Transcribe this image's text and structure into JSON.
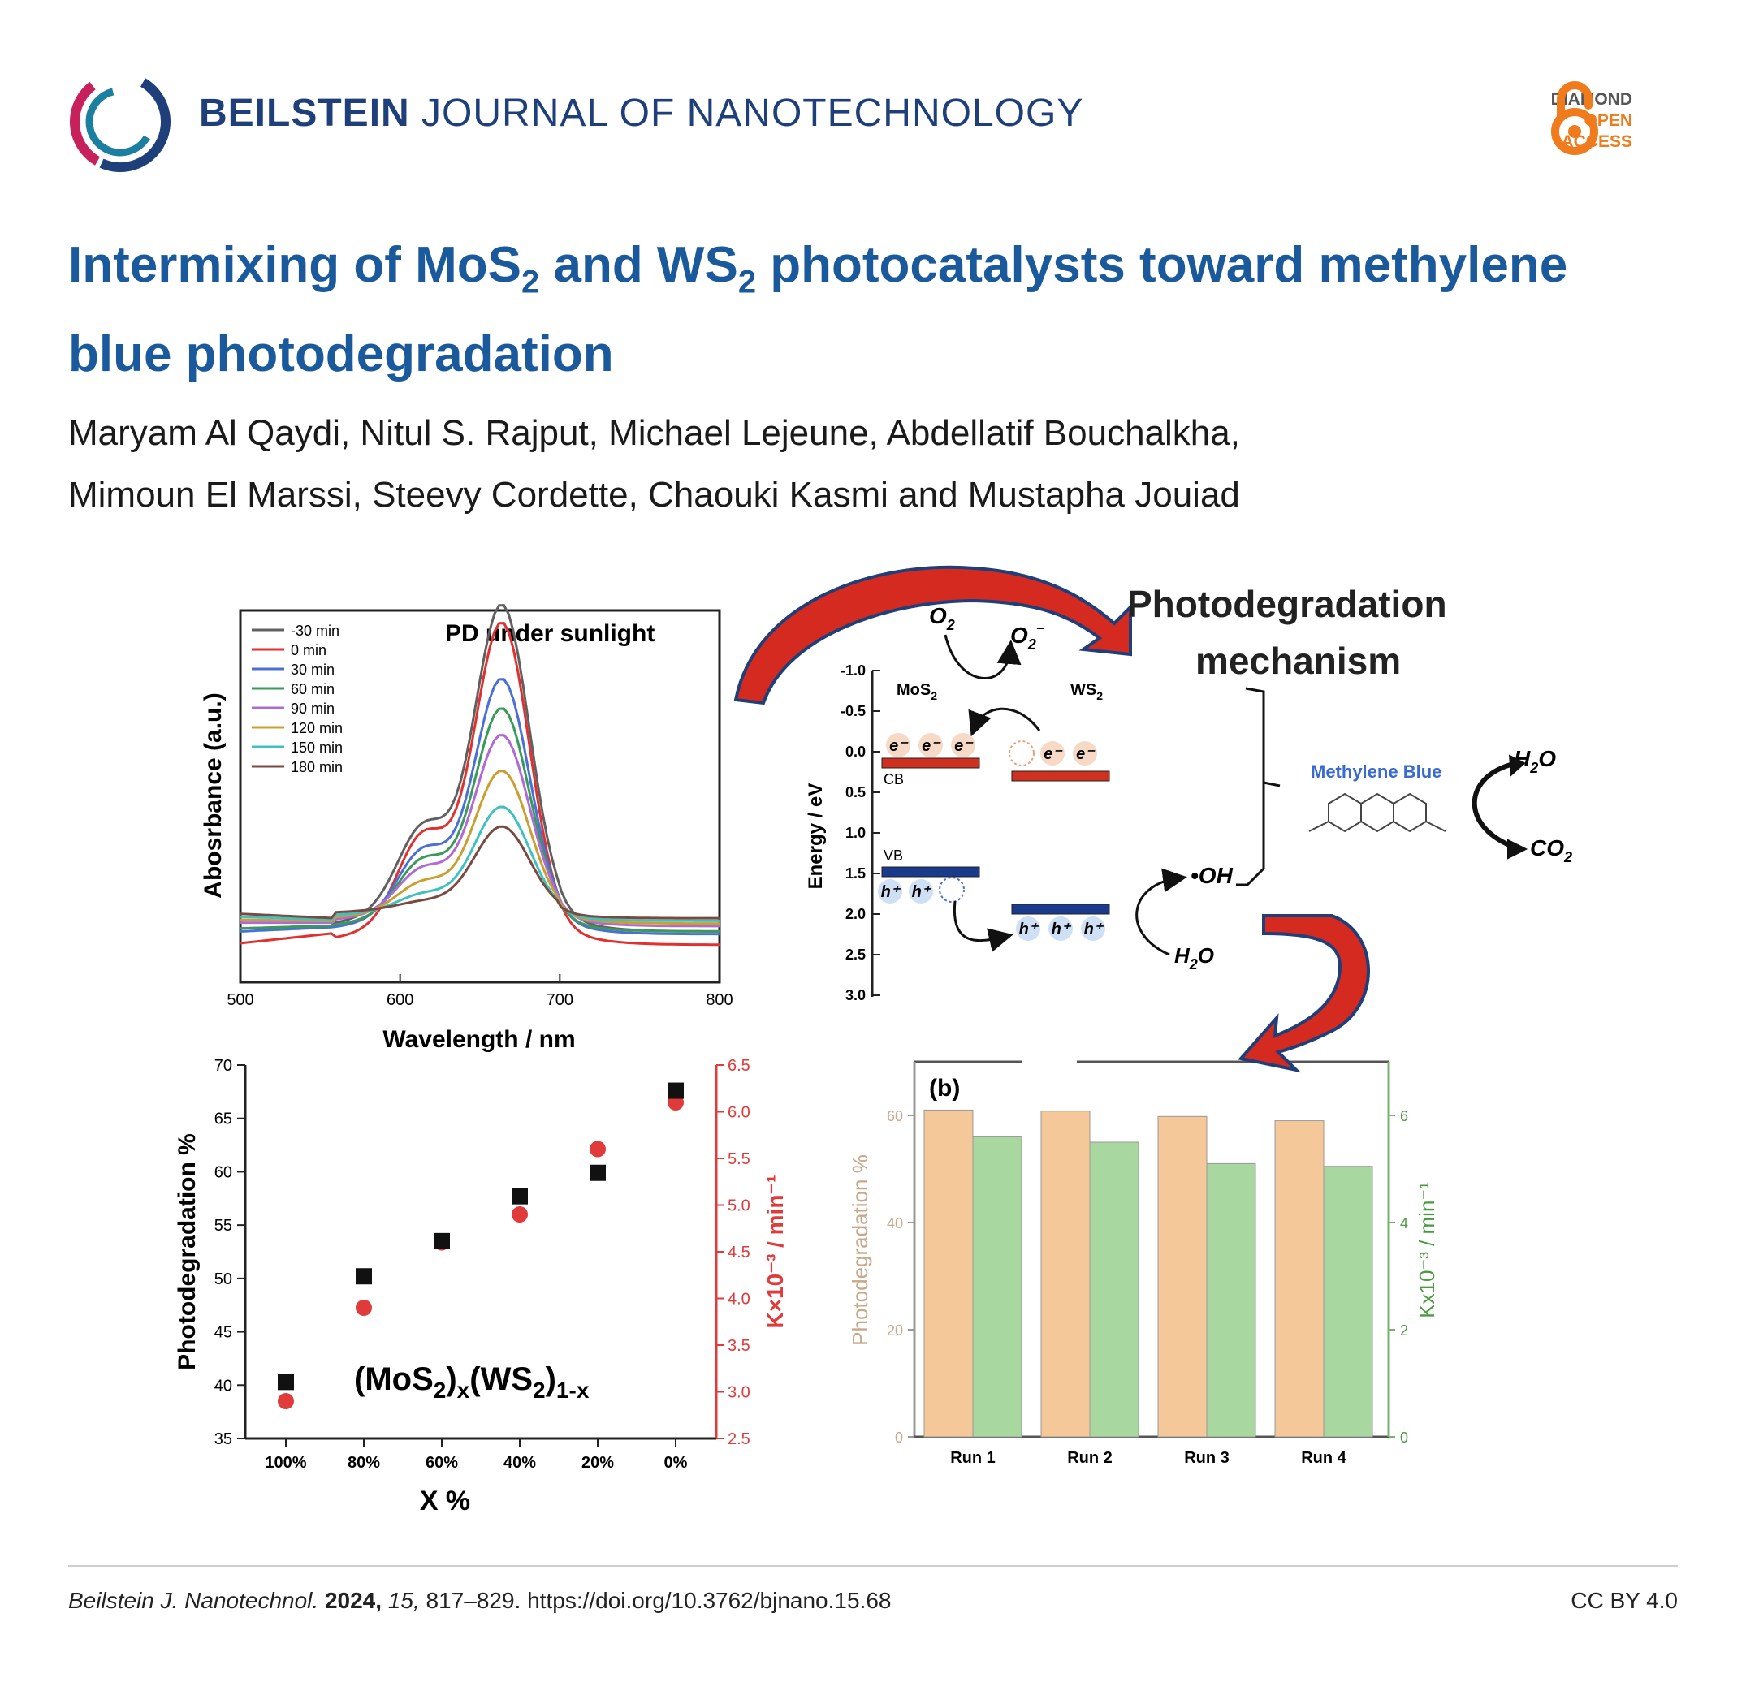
{
  "header": {
    "journal_bold": "BEILSTEIN",
    "journal_rest": "JOURNAL OF NANOTECHNOLOGY",
    "badge_line1": "DIAMOND",
    "badge_line2": "OPEN",
    "badge_line3": "ACCESS"
  },
  "article": {
    "title_part1": "Intermixing of MoS",
    "title_sub1": "2",
    "title_part2": " and WS",
    "title_sub2": "2",
    "title_part3": " photocatalysts toward methylene blue photodegradation",
    "authors_line1": "Maryam Al Qaydi, Nitul S. Rajput, Michael Lejeune, Abdellatif Bouchalkha,",
    "authors_line2": "Mimoun El Marssi, Steevy Cordette, Chaouki Kasmi and Mustapha Jouiad"
  },
  "footer": {
    "journal_abbr": "Beilstein J. Nanotechnol.",
    "year": "2024,",
    "volume": "15,",
    "pages_doi": "817–829. https://doi.org/10.3762/bjnano.15.68",
    "license": "CC BY 4.0"
  },
  "colors": {
    "title_blue": "#1a5a9c",
    "journal_navy": "#1f3f7a",
    "oa_orange": "#f07b1d",
    "arrow_red": "#d42a1f"
  },
  "mechanism": {
    "title_line1": "Photodegradation",
    "title_line2": "mechanism",
    "o2": "O",
    "o2_sub": "2",
    "o2_radical": "O",
    "o2_radical_sub": "2",
    "o2_radical_sup": "−",
    "mos2": "MoS",
    "mos2_sub": "2",
    "ws2": "WS",
    "ws2_sub": "2",
    "cb": "CB",
    "vb": "VB",
    "electron": "e⁻",
    "hole": "h⁺",
    "oh": "•OH",
    "h2o": "H",
    "h2o_sub": "2",
    "h2o_o": "O",
    "co2": "CO",
    "co2_sub": "2",
    "methylene_blue": "Methylene Blue",
    "energy_axis_label": "Energy / eV",
    "energy_ticks": [
      "-1.0",
      "-0.5",
      "0.0",
      "0.5",
      "1.0",
      "1.5",
      "2.0",
      "2.5",
      "3.0"
    ]
  },
  "chart_data": [
    {
      "type": "line",
      "title": "PD under sunlight",
      "xlabel": "Wavelength / nm",
      "ylabel": "Abosrbance (a.u.)",
      "xlim": [
        500,
        800
      ],
      "xticks": [
        "500",
        "600",
        "700",
        "800"
      ],
      "legend_position": "top-left",
      "series": [
        {
          "name": "-30 min",
          "color": "#606060",
          "base": 0.1,
          "peak": 1.0,
          "shoulder": 0.55
        },
        {
          "name": "0 min",
          "color": "#e03030",
          "base": 0.05,
          "peak": 0.99,
          "shoulder": 0.54
        },
        {
          "name": "30 min",
          "color": "#4a6fd6",
          "base": 0.09,
          "peak": 0.78,
          "shoulder": 0.45
        },
        {
          "name": "60 min",
          "color": "#3a9a5a",
          "base": 0.1,
          "peak": 0.68,
          "shoulder": 0.4
        },
        {
          "name": "90 min",
          "color": "#b06ad6",
          "base": 0.12,
          "peak": 0.58,
          "shoulder": 0.35
        },
        {
          "name": "120 min",
          "color": "#c8a030",
          "base": 0.13,
          "peak": 0.46,
          "shoulder": 0.28
        },
        {
          "name": "150 min",
          "color": "#40c0c0",
          "base": 0.14,
          "peak": 0.34,
          "shoulder": 0.22
        },
        {
          "name": "180 min",
          "color": "#7a4a40",
          "base": 0.15,
          "peak": 0.27,
          "shoulder": 0.18
        }
      ]
    },
    {
      "type": "scatter",
      "title": "(MoS2)x(WS2)1-x",
      "label_main": "(MoS",
      "label_sub1": "2",
      "label_mid": ")",
      "label_subx": "x",
      "label_mid2": "(WS",
      "label_sub2": "2",
      "label_end": ")",
      "label_sub1x": "1-x",
      "xlabel": "X %",
      "ylabel": "Photodegradation %",
      "y2label": "K×10⁻³ / min⁻¹",
      "categories": [
        "100%",
        "80%",
        "60%",
        "40%",
        "20%",
        "0%"
      ],
      "ylim": [
        35,
        70
      ],
      "y2lim": [
        2.5,
        6.5
      ],
      "yticks": [
        "35",
        "40",
        "45",
        "50",
        "55",
        "60",
        "65",
        "70"
      ],
      "y2ticks": [
        "2.5",
        "3.0",
        "3.5",
        "4.0",
        "4.5",
        "5.0",
        "5.5",
        "6.0",
        "6.5"
      ],
      "series": [
        {
          "name": "Photodegradation %",
          "axis": "left",
          "marker": "square",
          "color": "#111111",
          "values": [
            40.3,
            50.2,
            53.5,
            57.7,
            59.9,
            67.6
          ]
        },
        {
          "name": "K",
          "axis": "right",
          "marker": "circle",
          "color": "#e03a3a",
          "values": [
            2.9,
            3.9,
            4.6,
            4.9,
            5.6,
            6.1
          ]
        }
      ]
    },
    {
      "type": "bar",
      "panel_label": "(b)",
      "categories": [
        "Run 1",
        "Run 2",
        "Run 3",
        "Run 4"
      ],
      "ylabel": "Photodegradation %",
      "y2label": "Kx10⁻³ / min⁻¹",
      "ylim": [
        0,
        70
      ],
      "y2lim": [
        0,
        7
      ],
      "yticks": [
        "0",
        "20",
        "40",
        "60"
      ],
      "y2ticks": [
        "0",
        "2",
        "4",
        "6"
      ],
      "series": [
        {
          "name": "Photodegradation %",
          "axis": "left",
          "color": "#f5c89a",
          "values": [
            61,
            60.8,
            59.8,
            59
          ]
        },
        {
          "name": "K",
          "axis": "right",
          "color": "#a8d8a0",
          "values": [
            5.6,
            5.5,
            5.1,
            5.05
          ]
        }
      ]
    }
  ]
}
